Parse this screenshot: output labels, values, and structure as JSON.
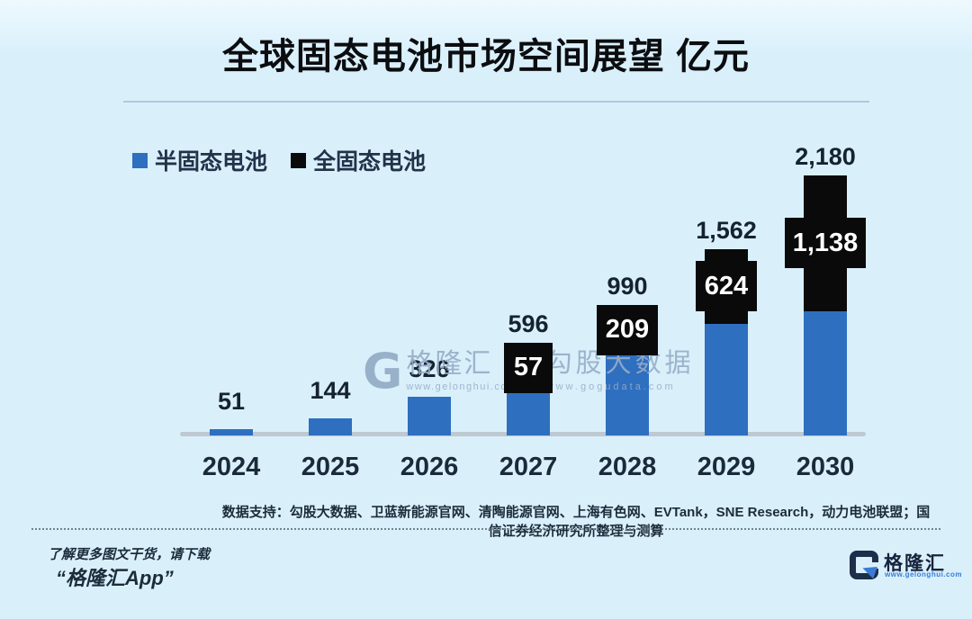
{
  "page": {
    "background": "#d9f0fb"
  },
  "header": {
    "title": "全球固态电池市场空间展望 亿元"
  },
  "legend": {
    "items": [
      {
        "label": "半固态电池",
        "color": "#2e6fc0"
      },
      {
        "label": "全固态电池",
        "color": "#0a0a0a"
      }
    ]
  },
  "chart_data": {
    "type": "bar",
    "stacked": true,
    "title": "全球固态电池市场空间展望 亿元",
    "unit": "亿元",
    "categories": [
      "2024",
      "2025",
      "2026",
      "2027",
      "2028",
      "2029",
      "2030"
    ],
    "series": [
      {
        "name": "半固态电池",
        "color": "#2e6fc0",
        "values": [
          51,
          144,
          326,
          539,
          781,
          938,
          1042
        ]
      },
      {
        "name": "全固态电池",
        "color": "#0a0a0a",
        "values": [
          0,
          0,
          0,
          57,
          209,
          624,
          1138
        ]
      }
    ],
    "totals": [
      51,
      144,
      326,
      596,
      990,
      1562,
      2180
    ],
    "total_labels": [
      "51",
      "144",
      "326",
      "596",
      "990",
      "1,562",
      "2,180"
    ],
    "segment_labels": [
      "",
      "",
      "",
      "57",
      "209",
      "624",
      "1,138"
    ],
    "ylim": [
      0,
      2300
    ],
    "grid": false,
    "legend_position": "top-left"
  },
  "watermark": {
    "g": "G",
    "brand": "格隆汇",
    "brand_url": "www.gelonghui.com",
    "partner": "勾股大数据",
    "partner_url": "www.gogudata.com"
  },
  "source": {
    "text": "数据支持：勾股大数据、卫蓝新能源官网、清陶能源官网、上海有色网、EVTank，SNE Research，动力电池联盟；国信证券经济研究所整理与测算"
  },
  "footer": {
    "promo_line1": "了解更多图文干货，请下载",
    "promo_line2": "“格隆汇App”",
    "logo_text": "格隆汇",
    "logo_url": "www.gelonghui.com"
  }
}
